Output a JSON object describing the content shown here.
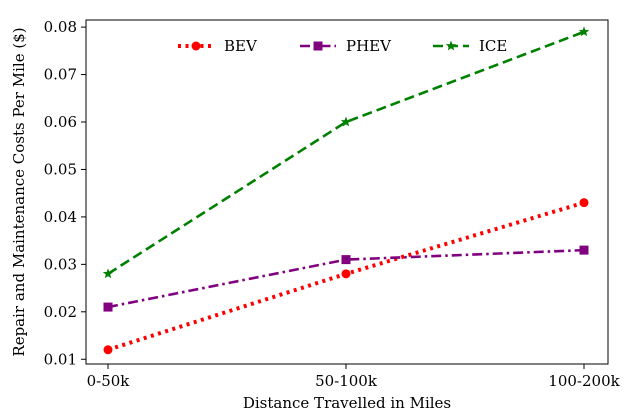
{
  "chart_data": {
    "type": "line",
    "categories": [
      "0-50k",
      "50-100k",
      "100-200k"
    ],
    "xlabel": "Distance Travelled in Miles",
    "ylabel": "Repair and Maintenance Costs Per Mile ($)",
    "ylim": [
      0.009,
      0.0815
    ],
    "yticks": [
      "0.01",
      "0.02",
      "0.03",
      "0.04",
      "0.05",
      "0.06",
      "0.07",
      "0.08"
    ],
    "grid": false,
    "legend_position": "top",
    "series": [
      {
        "name": "BEV",
        "values": [
          0.012,
          0.028,
          0.043
        ],
        "color": "#ff0000",
        "line_style": "dotted",
        "marker": "circle"
      },
      {
        "name": "PHEV",
        "values": [
          0.021,
          0.031,
          0.033
        ],
        "color": "#800080",
        "line_style": "dash-dot",
        "marker": "square"
      },
      {
        "name": "ICE",
        "values": [
          0.028,
          0.06,
          0.079
        ],
        "color": "#008000",
        "line_style": "dashed",
        "marker": "star"
      }
    ]
  }
}
